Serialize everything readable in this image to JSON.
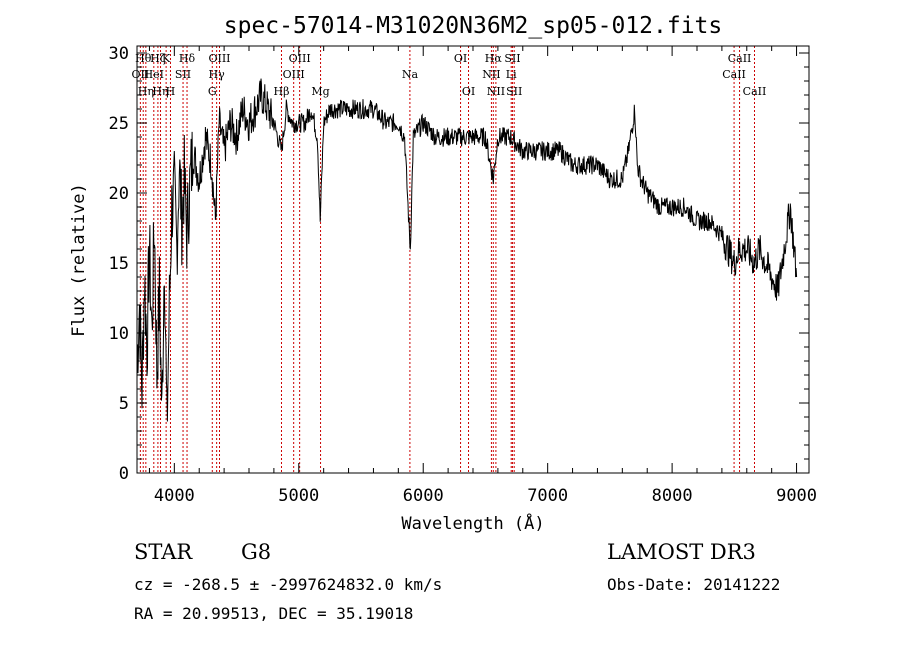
{
  "colors": {
    "axis": "#000000",
    "spectrum": "#000000",
    "line_marker": "#cc0000"
  },
  "chart_data": {
    "type": "line",
    "title": "spec-57014-M31020N36M2_sp05-012.fits",
    "xlabel": "Wavelength (Å)",
    "ylabel": "Flux (relative)",
    "xlim": [
      3700,
      9100
    ],
    "ylim": [
      0,
      30.5
    ],
    "xticks": [
      4000,
      5000,
      6000,
      7000,
      8000,
      9000
    ],
    "yticks": [
      0,
      5,
      10,
      15,
      20,
      25,
      30
    ],
    "series": [
      {
        "name": "spectrum",
        "x": [
          3700,
          3720,
          3740,
          3760,
          3780,
          3800,
          3820,
          3840,
          3860,
          3880,
          3900,
          3920,
          3940,
          3960,
          3980,
          4000,
          4020,
          4040,
          4060,
          4080,
          4100,
          4120,
          4150,
          4200,
          4250,
          4300,
          4330,
          4340,
          4360,
          4400,
          4450,
          4500,
          4550,
          4600,
          4650,
          4700,
          4750,
          4800,
          4861,
          4900,
          4950,
          5000,
          5050,
          5100,
          5150,
          5172,
          5200,
          5250,
          5300,
          5400,
          5500,
          5600,
          5700,
          5800,
          5850,
          5890,
          5896,
          5920,
          6000,
          6100,
          6200,
          6300,
          6400,
          6500,
          6563,
          6600,
          6700,
          6800,
          6900,
          7000,
          7100,
          7200,
          7300,
          7400,
          7500,
          7600,
          7650,
          7700,
          7720,
          7750,
          7800,
          7900,
          8000,
          8100,
          8200,
          8300,
          8400,
          8498,
          8542,
          8600,
          8662,
          8700,
          8750,
          8800,
          8850,
          8900,
          8950,
          9000
        ],
        "values": [
          8,
          12,
          6,
          14,
          9,
          16,
          10,
          18,
          7,
          13,
          4,
          16,
          3,
          12,
          19,
          20,
          16,
          22,
          18,
          21,
          17,
          20,
          23,
          21,
          24,
          22,
          18,
          20,
          25,
          23,
          25,
          24,
          26,
          25,
          26,
          27,
          26,
          25,
          23,
          26,
          25,
          25,
          25,
          26,
          24,
          18,
          25,
          26,
          26,
          26,
          26,
          26,
          25,
          25,
          24,
          17,
          16,
          24,
          25,
          24,
          24,
          24,
          24,
          24,
          21,
          24,
          24,
          23,
          23,
          23,
          23,
          22,
          22,
          22,
          21,
          21,
          23,
          26,
          22,
          21,
          20,
          19,
          19,
          19,
          18,
          18,
          17,
          15,
          16,
          16,
          15,
          16,
          15,
          14,
          13,
          16,
          19,
          14
        ]
      }
    ],
    "line_markers": [
      {
        "wave": 3727,
        "label": "OII",
        "row": 2
      },
      {
        "wave": 3750,
        "label": "Hθ",
        "row": 1
      },
      {
        "wave": 3771,
        "label": "Hη",
        "row": 3
      },
      {
        "wave": 3835,
        "label": "HeI",
        "row": 2
      },
      {
        "wave": 3868,
        "label": "Hζ",
        "row": 1
      },
      {
        "wave": 3889,
        "label": "Hη",
        "row": 3
      },
      {
        "wave": 3934,
        "label": "K",
        "row": 1
      },
      {
        "wave": 3969,
        "label": "H",
        "row": 3
      },
      {
        "wave": 4070,
        "label": "SII",
        "row": 2
      },
      {
        "wave": 4102,
        "label": "Hδ",
        "row": 1
      },
      {
        "wave": 4305,
        "label": "G",
        "row": 3
      },
      {
        "wave": 4340,
        "label": "Hγ",
        "row": 2
      },
      {
        "wave": 4363,
        "label": "OIII",
        "row": 1
      },
      {
        "wave": 4861,
        "label": "Hβ",
        "row": 3
      },
      {
        "wave": 4959,
        "label": "OIII",
        "row": 2
      },
      {
        "wave": 5007,
        "label": "OIII",
        "row": 1
      },
      {
        "wave": 5175,
        "label": "Mg",
        "row": 3
      },
      {
        "wave": 5893,
        "label": "Na",
        "row": 2
      },
      {
        "wave": 6300,
        "label": "OI",
        "row": 1
      },
      {
        "wave": 6364,
        "label": "OI",
        "row": 3
      },
      {
        "wave": 6548,
        "label": "NII",
        "row": 2
      },
      {
        "wave": 6563,
        "label": "Hα",
        "row": 1
      },
      {
        "wave": 6584,
        "label": "NII",
        "row": 3
      },
      {
        "wave": 6707,
        "label": "Li",
        "row": 2
      },
      {
        "wave": 6717,
        "label": "SII",
        "row": 1
      },
      {
        "wave": 6731,
        "label": "SII",
        "row": 3
      },
      {
        "wave": 8498,
        "label": "CaII",
        "row": 2
      },
      {
        "wave": 8542,
        "label": "CaII",
        "row": 1
      },
      {
        "wave": 8662,
        "label": "CaII",
        "row": 3
      }
    ]
  },
  "info": {
    "class_label": "STAR",
    "subclass_label": "G8",
    "survey_label": "LAMOST DR3",
    "cz_line": "cz = -268.5 ± -2997624832.0 km/s",
    "obs_date": "Obs-Date: 20141222",
    "radec_line": "RA =  20.99513, DEC =  35.19018"
  }
}
